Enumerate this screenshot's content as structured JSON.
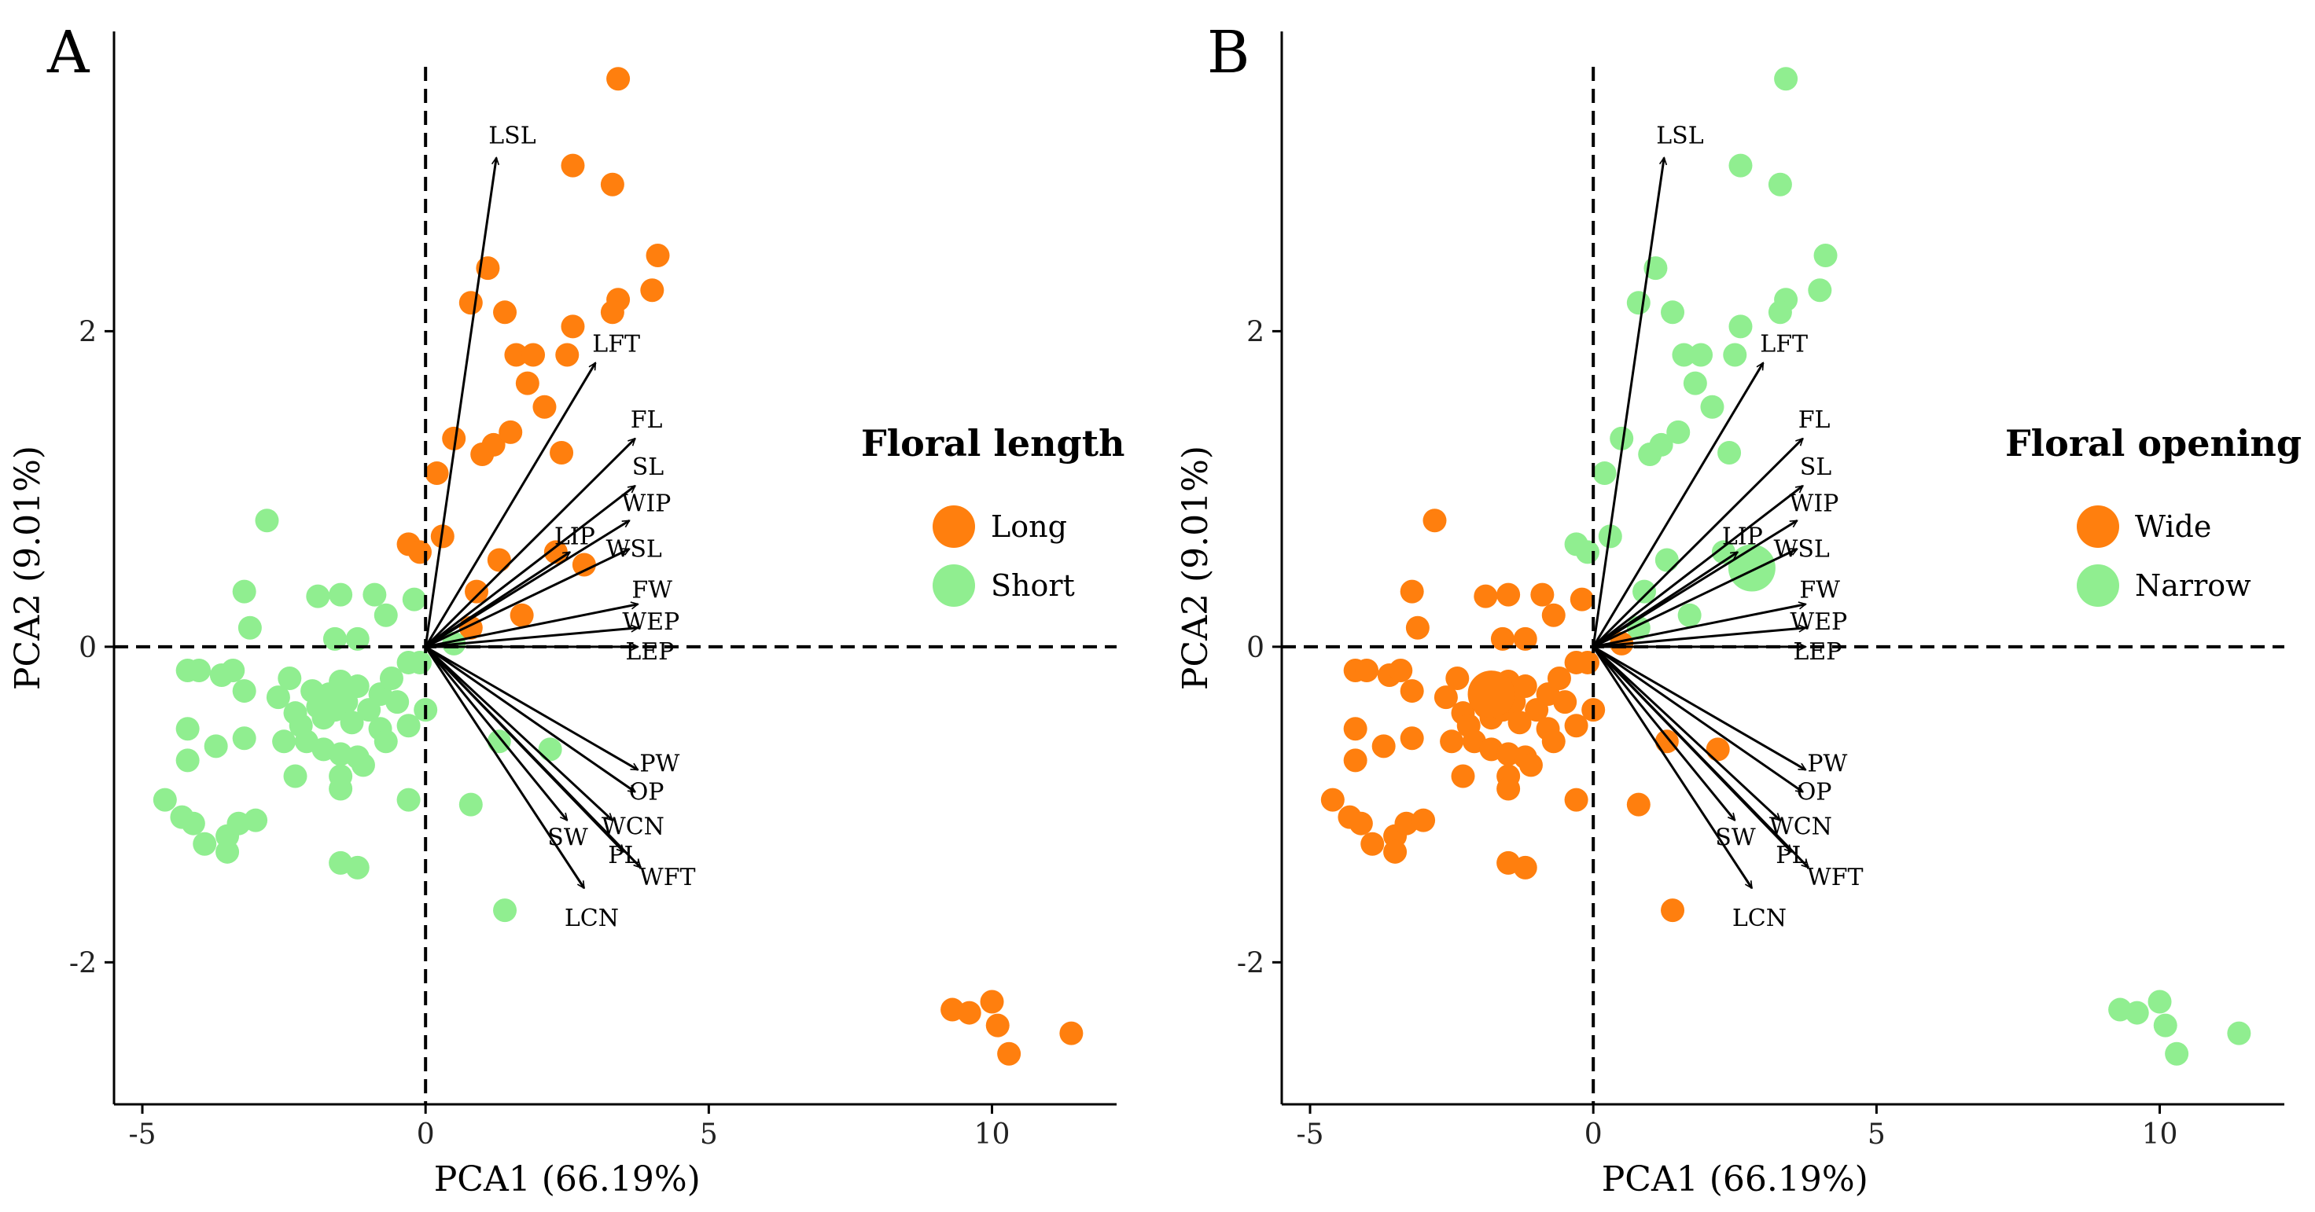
{
  "colors": {
    "long": "#FF7F0E",
    "short": "#90EE90",
    "wide": "#FF7F0E",
    "narrow": "#90EE90",
    "axis": "#000000"
  },
  "chart_data": [
    {
      "type": "scatter",
      "panel": "A",
      "xlabel": "PCA1 (66.19%)",
      "ylabel": "PCA2 (9.01%)",
      "xlim": [
        -5.5,
        12.2
      ],
      "ylim": [
        -2.9,
        3.9
      ],
      "xticks": [
        -5,
        0,
        5,
        10
      ],
      "yticks": [
        -2,
        0,
        2
      ],
      "xticklabels": [
        "-5",
        "0",
        "5",
        "10"
      ],
      "yticklabels": [
        "-2",
        "0",
        "2"
      ],
      "legend": {
        "title": "Floral length",
        "position": "right",
        "entries": [
          {
            "label": "Long",
            "group": "long"
          },
          {
            "label": "Short",
            "group": "short"
          }
        ]
      },
      "group_assignment": {
        "above_diag": "long",
        "below_diag": "short"
      },
      "points": [
        [
          3.4,
          3.6
        ],
        [
          2.6,
          3.05
        ],
        [
          3.3,
          2.93
        ],
        [
          1.1,
          2.4
        ],
        [
          4.1,
          2.48
        ],
        [
          0.8,
          2.18
        ],
        [
          1.4,
          2.12
        ],
        [
          3.4,
          2.2
        ],
        [
          4.0,
          2.26
        ],
        [
          2.6,
          2.03
        ],
        [
          3.3,
          2.12
        ],
        [
          1.6,
          1.85
        ],
        [
          1.9,
          1.85
        ],
        [
          2.5,
          1.85
        ],
        [
          1.8,
          1.67
        ],
        [
          2.1,
          1.52
        ],
        [
          0.5,
          1.32
        ],
        [
          1.2,
          1.28
        ],
        [
          1.0,
          1.22
        ],
        [
          1.5,
          1.36
        ],
        [
          2.4,
          1.23
        ],
        [
          0.2,
          1.1
        ],
        [
          2.3,
          0.6
        ],
        [
          2.8,
          0.52
        ],
        [
          1.3,
          0.55
        ],
        [
          -0.3,
          0.65
        ],
        [
          0.3,
          0.7
        ],
        [
          -0.1,
          0.6
        ],
        [
          0.9,
          0.35
        ],
        [
          0.8,
          0.12
        ],
        [
          1.7,
          0.2
        ],
        [
          0.5,
          0.02
        ],
        [
          -0.1,
          -0.1
        ],
        [
          0.0,
          -0.4
        ],
        [
          1.3,
          -0.6
        ],
        [
          2.2,
          -0.65
        ],
        [
          0.8,
          -1.0
        ],
        [
          1.4,
          -1.67
        ],
        [
          9.3,
          -2.3
        ],
        [
          9.6,
          -2.32
        ],
        [
          10.0,
          -2.25
        ],
        [
          10.1,
          -2.4
        ],
        [
          10.3,
          -2.58
        ],
        [
          11.4,
          -2.45
        ],
        [
          -2.8,
          0.8
        ],
        [
          -3.2,
          0.35
        ],
        [
          -3.1,
          0.12
        ],
        [
          -1.9,
          0.32
        ],
        [
          -1.5,
          0.33
        ],
        [
          -0.9,
          0.33
        ],
        [
          -0.7,
          0.2
        ],
        [
          -0.2,
          0.3
        ],
        [
          -1.2,
          0.05
        ],
        [
          -1.6,
          0.05
        ],
        [
          -4.2,
          -0.15
        ],
        [
          -4.0,
          -0.15
        ],
        [
          -3.6,
          -0.18
        ],
        [
          -3.4,
          -0.15
        ],
        [
          -3.2,
          -0.28
        ],
        [
          -2.6,
          -0.32
        ],
        [
          -2.4,
          -0.2
        ],
        [
          -2.3,
          -0.42
        ],
        [
          -2.2,
          -0.5
        ],
        [
          -2.0,
          -0.28
        ],
        [
          -1.9,
          -0.38
        ],
        [
          -1.8,
          -0.45
        ],
        [
          -1.7,
          -0.3
        ],
        [
          -1.6,
          -0.4
        ],
        [
          -1.5,
          -0.22
        ],
        [
          -1.4,
          -0.35
        ],
        [
          -1.3,
          -0.48
        ],
        [
          -1.2,
          -0.25
        ],
        [
          -1.0,
          -0.4
        ],
        [
          -0.8,
          -0.3
        ],
        [
          -0.6,
          -0.2
        ],
        [
          -0.5,
          -0.35
        ],
        [
          -0.3,
          -0.1
        ],
        [
          -0.8,
          -0.52
        ],
        [
          -0.3,
          -0.5
        ],
        [
          -0.7,
          -0.6
        ],
        [
          -2.5,
          -0.6
        ],
        [
          -2.1,
          -0.6
        ],
        [
          -1.8,
          -0.65
        ],
        [
          -1.5,
          -0.68
        ],
        [
          -1.2,
          -0.7
        ],
        [
          -4.2,
          -0.52
        ],
        [
          -4.2,
          -0.72
        ],
        [
          -3.7,
          -0.63
        ],
        [
          -3.2,
          -0.58
        ],
        [
          -2.3,
          -0.82
        ],
        [
          -1.5,
          -0.82
        ],
        [
          -1.5,
          -0.9
        ],
        [
          -1.1,
          -0.75
        ],
        [
          -0.3,
          -0.97
        ],
        [
          -4.6,
          -0.97
        ],
        [
          -4.3,
          -1.08
        ],
        [
          -4.1,
          -1.12
        ],
        [
          -3.5,
          -1.2
        ],
        [
          -3.3,
          -1.12
        ],
        [
          -3.0,
          -1.1
        ],
        [
          -3.9,
          -1.25
        ],
        [
          -3.5,
          -1.3
        ],
        [
          -1.5,
          -1.37
        ],
        [
          -1.2,
          -1.4
        ]
      ],
      "highlight_point": null,
      "loadings": [
        {
          "label": "LSL",
          "x": 1.25,
          "y": 3.1
        },
        {
          "label": "LFT",
          "x": 3.0,
          "y": 1.8
        },
        {
          "label": "FL",
          "x": 3.7,
          "y": 1.32
        },
        {
          "label": "SL",
          "x": 3.7,
          "y": 1.02
        },
        {
          "label": "WIP",
          "x": 3.6,
          "y": 0.8
        },
        {
          "label": "LIP",
          "x": 2.55,
          "y": 0.6
        },
        {
          "label": "WSL",
          "x": 3.6,
          "y": 0.62
        },
        {
          "label": "FW",
          "x": 3.75,
          "y": 0.27
        },
        {
          "label": "WEP",
          "x": 3.75,
          "y": 0.12
        },
        {
          "label": "LEP",
          "x": 3.75,
          "y": 0.0
        },
        {
          "label": "PW",
          "x": 3.75,
          "y": -0.78
        },
        {
          "label": "OP",
          "x": 3.7,
          "y": -0.92
        },
        {
          "label": "WCN",
          "x": 3.3,
          "y": -1.1
        },
        {
          "label": "SW",
          "x": 2.5,
          "y": -1.1
        },
        {
          "label": "PL",
          "x": 3.5,
          "y": -1.3
        },
        {
          "label": "WFT",
          "x": 3.8,
          "y": -1.4
        },
        {
          "label": "LCN",
          "x": 2.8,
          "y": -1.53
        }
      ]
    },
    {
      "type": "scatter",
      "panel": "B",
      "xlabel": "PCA1 (66.19%)",
      "ylabel": "PCA2 (9.01%)",
      "xlim": [
        -5.5,
        12.2
      ],
      "ylim": [
        -2.9,
        3.9
      ],
      "xticks": [
        -5,
        0,
        5,
        10
      ],
      "yticks": [
        -2,
        0,
        2
      ],
      "xticklabels": [
        "-5",
        "0",
        "5",
        "10"
      ],
      "yticklabels": [
        "-2",
        "0",
        "2"
      ],
      "legend": {
        "title": "Floral opening",
        "position": "right",
        "entries": [
          {
            "label": "Wide",
            "group": "wide"
          },
          {
            "label": "Narrow",
            "group": "narrow"
          }
        ]
      },
      "group_assignment": {
        "above_diag": "narrow",
        "below_diag": "wide"
      },
      "points": "same_as_panel_A",
      "highlight_points": [
        {
          "x": -1.8,
          "y": -0.3,
          "group": "wide"
        },
        {
          "x": 2.8,
          "y": 0.5,
          "group": "narrow"
        }
      ],
      "loadings": "same_as_panel_A"
    }
  ]
}
